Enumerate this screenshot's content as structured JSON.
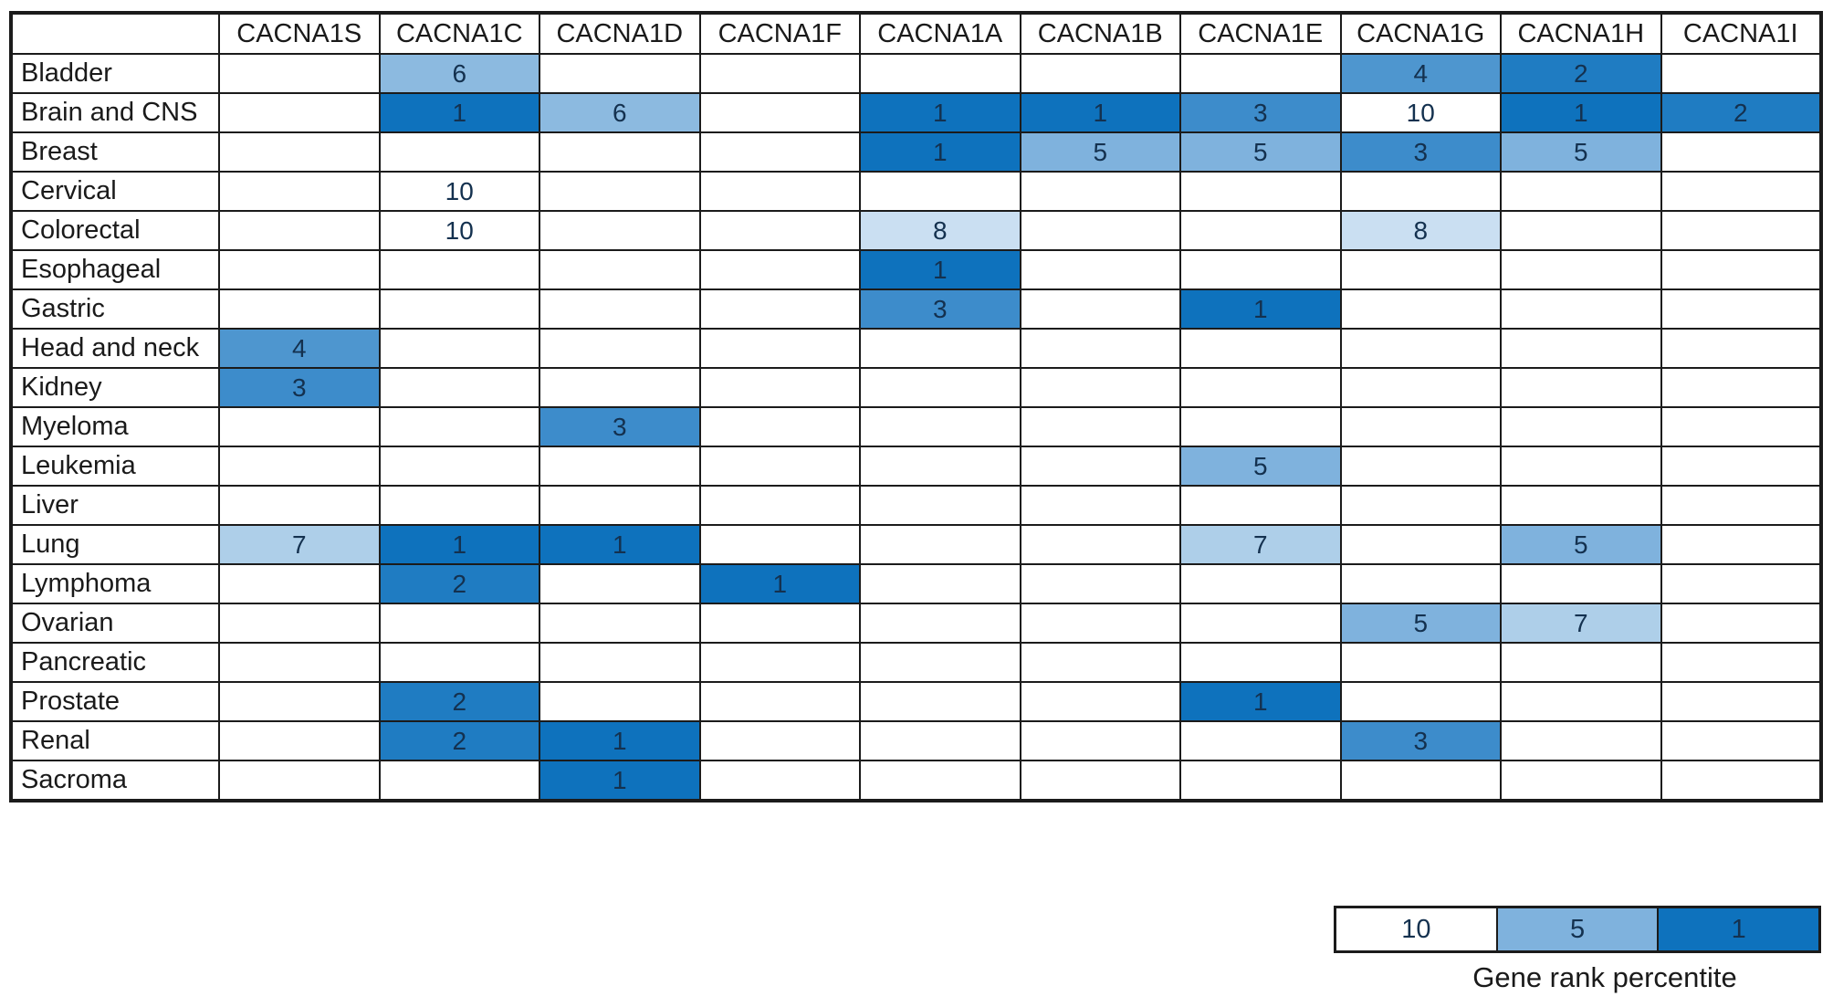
{
  "chart_data": {
    "type": "heatmap",
    "title": "",
    "columns": [
      "CACNA1S",
      "CACNA1C",
      "CACNA1D",
      "CACNA1F",
      "CACNA1A",
      "CACNA1B",
      "CACNA1E",
      "CACNA1G",
      "CACNA1H",
      "CACNA1I"
    ],
    "rows": [
      "Bladder",
      "Brain and CNS",
      "Breast",
      "Cervical",
      "Colorectal",
      "Esophageal",
      "Gastric",
      "Head and neck",
      "Kidney",
      "Myeloma",
      "Leukemia",
      "Liver",
      "Lung",
      "Lymphoma",
      "Ovarian",
      "Pancreatic",
      "Prostate",
      "Renal",
      "Sacroma"
    ],
    "values": [
      [
        null,
        6,
        null,
        null,
        null,
        null,
        null,
        4,
        2,
        null
      ],
      [
        null,
        1,
        6,
        null,
        1,
        1,
        3,
        10,
        1,
        2
      ],
      [
        null,
        null,
        null,
        null,
        1,
        5,
        5,
        3,
        5,
        null
      ],
      [
        null,
        10,
        null,
        null,
        null,
        null,
        null,
        null,
        null,
        null
      ],
      [
        null,
        10,
        null,
        null,
        8,
        null,
        null,
        8,
        null,
        null
      ],
      [
        null,
        null,
        null,
        null,
        1,
        null,
        null,
        null,
        null,
        null
      ],
      [
        null,
        null,
        null,
        null,
        3,
        null,
        1,
        null,
        null,
        null
      ],
      [
        4,
        null,
        null,
        null,
        null,
        null,
        null,
        null,
        null,
        null
      ],
      [
        3,
        null,
        null,
        null,
        null,
        null,
        null,
        null,
        null,
        null
      ],
      [
        null,
        null,
        3,
        null,
        null,
        null,
        null,
        null,
        null,
        null
      ],
      [
        null,
        null,
        null,
        null,
        null,
        null,
        5,
        null,
        null,
        null
      ],
      [
        null,
        null,
        null,
        null,
        null,
        null,
        null,
        null,
        null,
        null
      ],
      [
        7,
        1,
        1,
        null,
        null,
        null,
        7,
        null,
        5,
        null
      ],
      [
        null,
        2,
        null,
        1,
        null,
        null,
        null,
        null,
        null,
        null
      ],
      [
        null,
        null,
        null,
        null,
        null,
        null,
        null,
        5,
        7,
        null
      ],
      [
        null,
        null,
        null,
        null,
        null,
        null,
        null,
        null,
        null,
        null
      ],
      [
        null,
        2,
        null,
        null,
        null,
        null,
        1,
        null,
        null,
        null
      ],
      [
        null,
        2,
        1,
        null,
        null,
        null,
        null,
        3,
        null,
        null
      ],
      [
        null,
        null,
        1,
        null,
        null,
        null,
        null,
        null,
        null,
        null
      ]
    ],
    "colormap": {
      "1": "#0e72bd",
      "2": "#1f7cc2",
      "3": "#3d8ccb",
      "4": "#4e96cf",
      "5": "#7fb2dd",
      "6": "#8cbae0",
      "7": "#aecfe9",
      "8": "#cadff2",
      "10": "#ffffff"
    },
    "empty_color": "#ffffff",
    "axis": {
      "x_label": "",
      "y_label": "",
      "grid": true
    },
    "legend": {
      "position": "bottom-right",
      "items": [
        {
          "label": "10",
          "value": 10
        },
        {
          "label": "5",
          "value": 5
        },
        {
          "label": "1",
          "value": 1
        }
      ],
      "caption": "Gene rank percentite"
    }
  }
}
